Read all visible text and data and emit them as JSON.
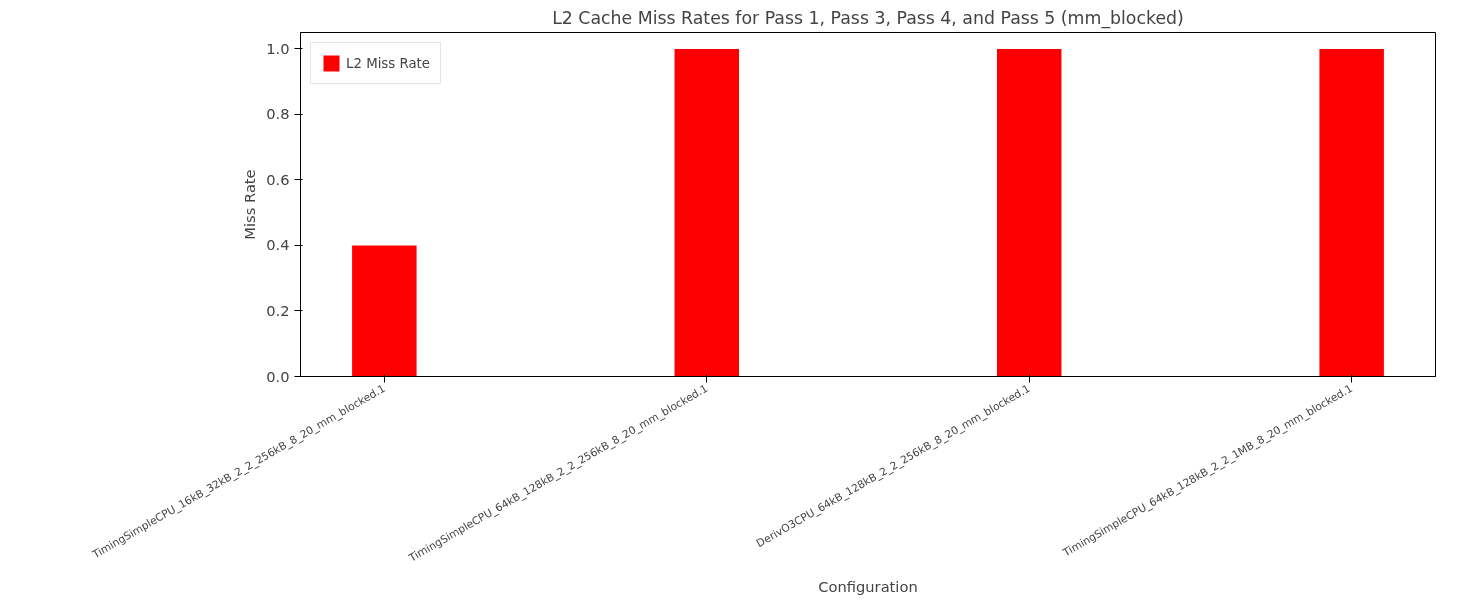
{
  "chart_data": {
    "type": "bar",
    "title": "L2 Cache Miss Rates for Pass 1, Pass 3, Pass 4, and Pass 5 (mm_blocked)",
    "xlabel": "Configuration",
    "ylabel": "Miss Rate",
    "categories": [
      "TimingSimpleCPU_16kB_32kB_2_2_256kB_8_20_mm_blocked.1",
      "TimingSimpleCPU_64kB_128kB_2_2_256kB_8_20_mm_blocked.1",
      "DerivO3CPU_64kB_128kB_2_2_256kB_8_20_mm_blocked.1",
      "TimingSimpleCPU_64kB_128kB_2_2_1MB_8_20_mm_blocked.1"
    ],
    "series": [
      {
        "name": "L2 Miss Rate",
        "color": "#ff0000",
        "values": [
          0.4,
          1.0,
          1.0,
          1.0
        ]
      }
    ],
    "ylim": [
      0,
      1.05
    ],
    "yticks": [
      {
        "value": 0,
        "label": "0.0"
      },
      {
        "value": 0.2,
        "label": "0.2"
      },
      {
        "value": 0.4,
        "label": "0.4"
      },
      {
        "value": 0.6,
        "label": "0.6"
      },
      {
        "value": 0.8,
        "label": "0.8"
      },
      {
        "value": 1.0,
        "label": "1.0"
      }
    ],
    "grid": false,
    "legend": "top left"
  }
}
